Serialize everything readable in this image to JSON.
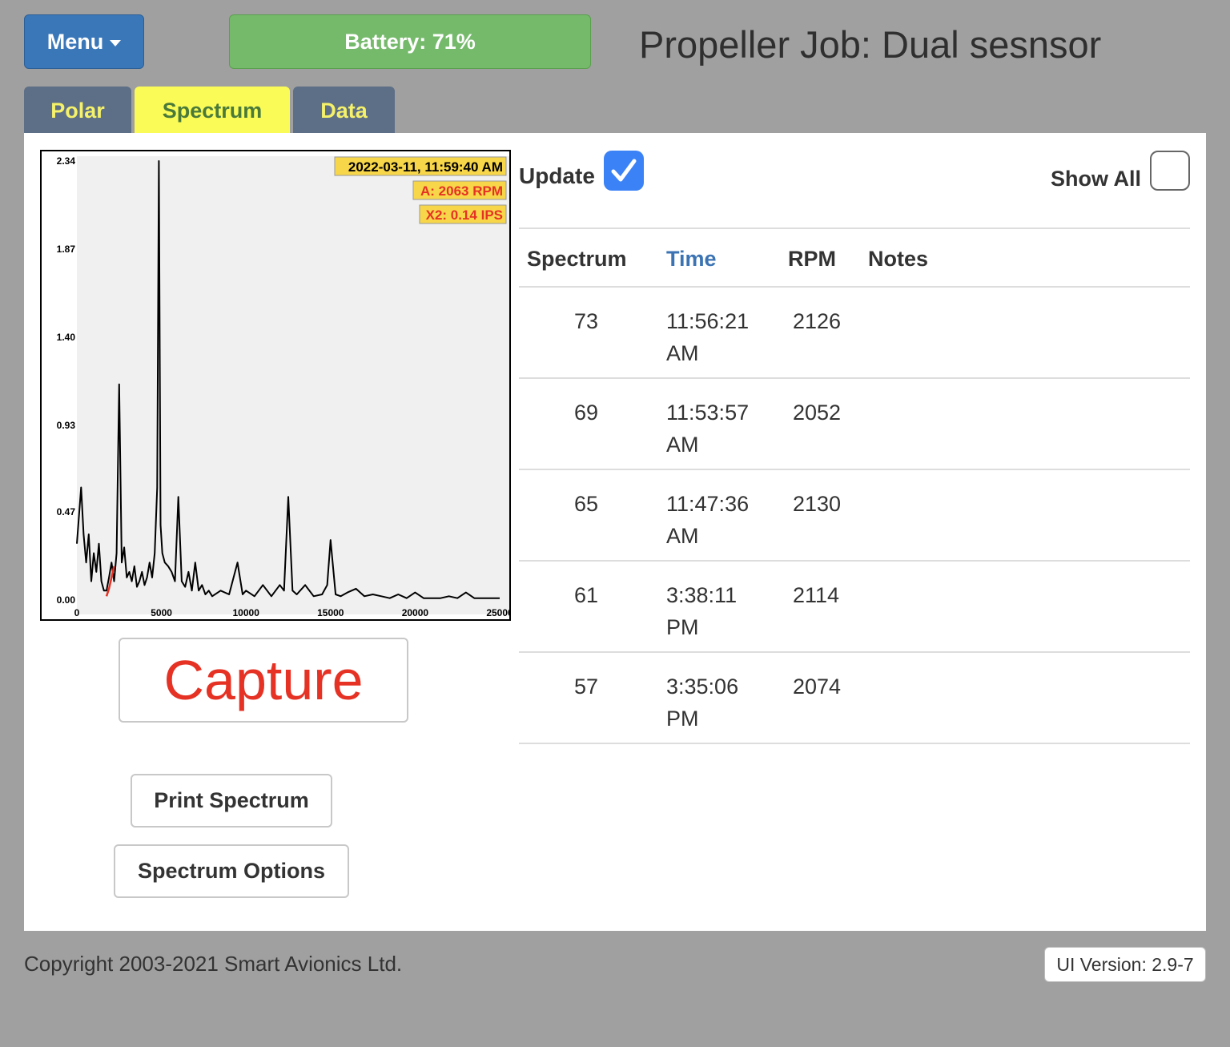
{
  "header": {
    "menu_label": "Menu",
    "battery_label": "Battery: 71%",
    "job_title": "Propeller Job: Dual sesnsor"
  },
  "tabs": [
    {
      "label": "Polar",
      "active": false
    },
    {
      "label": "Spectrum",
      "active": true
    },
    {
      "label": "Data",
      "active": false
    }
  ],
  "chart": {
    "timestamp_label": "2022-03-11, 11:59:40 AM",
    "rpm_label": "A: 2063 RPM",
    "ips_label": "X2: 0.14 IPS"
  },
  "chart_data": {
    "type": "line",
    "xlim": [
      0,
      25000
    ],
    "ylim": [
      0,
      2.34
    ],
    "x_ticks": [
      "0",
      "5000",
      "10000",
      "15000",
      "20000",
      "25000"
    ],
    "y_ticks": [
      "0.00",
      "0.47",
      "0.93",
      "1.40",
      "1.87",
      "2.34"
    ],
    "grid": false,
    "series": [
      {
        "color": "#000000",
        "x": [
          0,
          250,
          400,
          550,
          700,
          850,
          1000,
          1150,
          1300,
          1450,
          1600,
          1750,
          1900,
          2050,
          2200,
          2350,
          2500,
          2650,
          2800,
          2950,
          3100,
          3250,
          3400,
          3550,
          3700,
          3850,
          4000,
          4150,
          4300,
          4450,
          4600,
          4750,
          4850,
          4950,
          5050,
          5200,
          5400,
          5600,
          5800,
          6000,
          6200,
          6400,
          6600,
          6800,
          7000,
          7200,
          7400,
          7600,
          7800,
          8000,
          8500,
          9000,
          9500,
          9800,
          10000,
          10500,
          11000,
          11500,
          12000,
          12250,
          12500,
          12750,
          13000,
          13500,
          14000,
          14500,
          14800,
          15000,
          15300,
          15600,
          16000,
          16500,
          17000,
          17500,
          18000,
          18500,
          19000,
          19500,
          20000,
          20500,
          21000,
          21500,
          22000,
          22500,
          23000,
          23500,
          24000,
          24500,
          25000
        ],
        "y": [
          0.3,
          0.6,
          0.35,
          0.2,
          0.35,
          0.1,
          0.25,
          0.15,
          0.3,
          0.1,
          0.05,
          0.05,
          0.12,
          0.2,
          0.1,
          0.25,
          1.15,
          0.2,
          0.28,
          0.12,
          0.15,
          0.1,
          0.18,
          0.07,
          0.1,
          0.15,
          0.08,
          0.12,
          0.2,
          0.12,
          0.25,
          0.6,
          2.34,
          0.4,
          0.25,
          0.2,
          0.18,
          0.15,
          0.1,
          0.55,
          0.1,
          0.07,
          0.15,
          0.05,
          0.2,
          0.05,
          0.08,
          0.03,
          0.05,
          0.02,
          0.05,
          0.03,
          0.2,
          0.03,
          0.05,
          0.02,
          0.08,
          0.02,
          0.08,
          0.05,
          0.55,
          0.05,
          0.03,
          0.08,
          0.02,
          0.03,
          0.08,
          0.32,
          0.03,
          0.02,
          0.04,
          0.06,
          0.02,
          0.03,
          0.02,
          0.01,
          0.03,
          0.01,
          0.04,
          0.01,
          0.01,
          0.01,
          0.02,
          0.01,
          0.04,
          0.01,
          0.01,
          0.01,
          0.01
        ]
      },
      {
        "color": "#e53224",
        "x": [
          1750,
          1900,
          2050,
          2200
        ],
        "y": [
          0.02,
          0.06,
          0.12,
          0.18
        ]
      }
    ]
  },
  "update_label": "Update",
  "update_checked": true,
  "show_all_label": "Show All",
  "show_all_checked": false,
  "table": {
    "headers": [
      "Spectrum",
      "Time",
      "RPM",
      "Notes"
    ],
    "rows": [
      {
        "spectrum": "73",
        "time_line1": "11:56:21",
        "time_line2": "AM",
        "rpm": "2126",
        "notes": ""
      },
      {
        "spectrum": "69",
        "time_line1": "11:53:57",
        "time_line2": "AM",
        "rpm": "2052",
        "notes": ""
      },
      {
        "spectrum": "65",
        "time_line1": "11:47:36",
        "time_line2": "AM",
        "rpm": "2130",
        "notes": ""
      },
      {
        "spectrum": "61",
        "time_line1": "3:38:11",
        "time_line2": "PM",
        "rpm": "2114",
        "notes": ""
      },
      {
        "spectrum": "57",
        "time_line1": "3:35:06",
        "time_line2": "PM",
        "rpm": "2074",
        "notes": ""
      }
    ]
  },
  "buttons": {
    "capture": "Capture",
    "print_spectrum": "Print Spectrum",
    "spectrum_options": "Spectrum Options"
  },
  "footer": {
    "copyright": "Copyright 2003-2021 Smart Avionics Ltd.",
    "ui_version": "UI Version: 2.9-7"
  },
  "colors": {
    "menu_button": "#3a77b9",
    "battery": "#75b96b",
    "tab_inactive": "#5d6f86",
    "tab_active": "#fbfb57",
    "capture_text": "#e53224",
    "checkbox_on": "#3b82f6"
  }
}
